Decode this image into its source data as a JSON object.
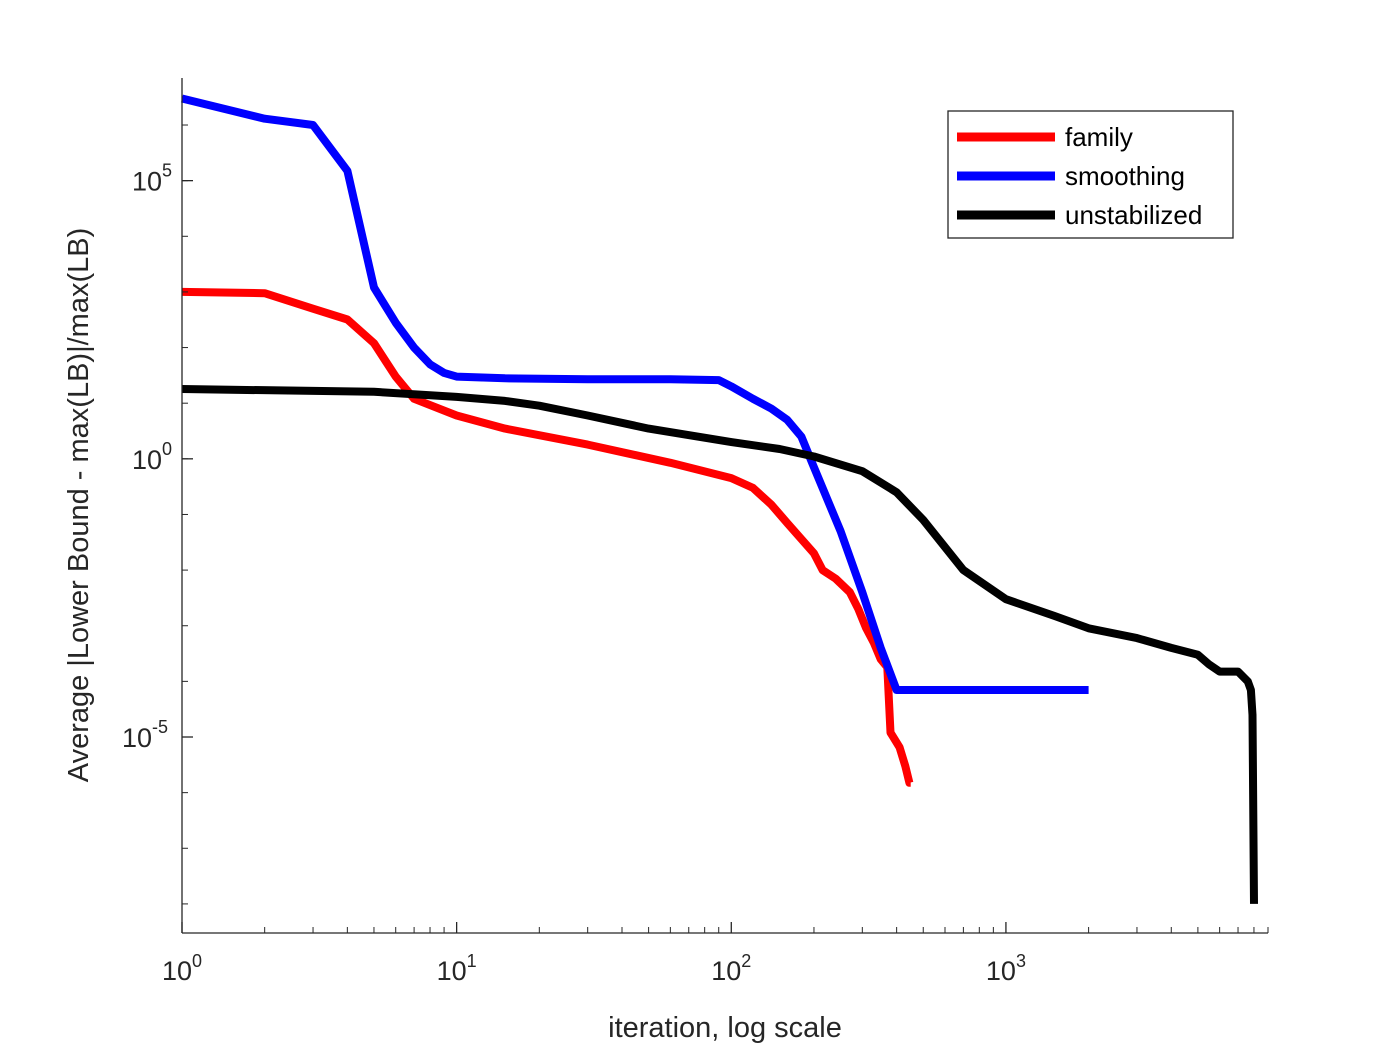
{
  "chart_data": {
    "type": "line",
    "title": "",
    "xlabel": "iteration, log scale",
    "ylabel": "Average |Lower Bound - max(LB)|/max(LB)",
    "xscale": "log",
    "yscale": "log",
    "xlim": [
      1,
      9000
    ],
    "ylim": [
      3e-09,
      7000000
    ],
    "grid": false,
    "legend_position": "top-right",
    "xticks": [
      {
        "value": 1,
        "base": "10",
        "exp": "0"
      },
      {
        "value": 10,
        "base": "10",
        "exp": "1"
      },
      {
        "value": 100,
        "base": "10",
        "exp": "2"
      },
      {
        "value": 1000,
        "base": "10",
        "exp": "3"
      }
    ],
    "yticks": [
      {
        "value": 1e-05,
        "base": "10",
        "exp": "-5"
      },
      {
        "value": 1,
        "base": "10",
        "exp": "0"
      },
      {
        "value": 100000,
        "base": "10",
        "exp": "5"
      }
    ],
    "series": [
      {
        "name": "family",
        "color": "#ff0000",
        "x": [
          1,
          2,
          3,
          4,
          5,
          6,
          7,
          10,
          15,
          30,
          60,
          100,
          120,
          140,
          160,
          200,
          215,
          240,
          270,
          290,
          310,
          330,
          350,
          370,
          380,
          410,
          430,
          445,
          450
        ],
        "y": [
          1000,
          950,
          500,
          320,
          120,
          30,
          12,
          6,
          3.5,
          1.8,
          0.85,
          0.45,
          0.3,
          0.15,
          0.07,
          0.02,
          0.01,
          0.007,
          0.004,
          0.002,
          0.0009,
          0.0005,
          0.00025,
          0.00018,
          1.2e-05,
          6.5e-06,
          3e-06,
          1.5e-06,
          1.5e-06
        ]
      },
      {
        "name": "smoothing",
        "color": "#0000ff",
        "x": [
          1,
          2,
          3,
          4,
          5,
          6,
          7,
          8,
          9,
          10,
          15,
          30,
          60,
          90,
          100,
          120,
          140,
          160,
          180,
          200,
          250,
          300,
          350,
          400,
          2000
        ],
        "y": [
          3000000,
          1300000,
          1000000,
          150000,
          1200,
          280,
          100,
          50,
          35,
          30,
          28,
          27,
          27,
          26,
          20,
          12,
          8,
          5,
          2.5,
          0.7,
          0.05,
          0.004,
          0.0004,
          7e-05,
          7e-05
        ]
      },
      {
        "name": "unstabilized",
        "color": "#000000",
        "x": [
          1,
          5,
          10,
          15,
          20,
          30,
          50,
          100,
          150,
          200,
          300,
          400,
          500,
          700,
          1000,
          1500,
          2000,
          3000,
          4000,
          5000,
          5500,
          6000,
          7000,
          7600,
          7800,
          7900,
          8000,
          8000
        ],
        "y": [
          18,
          16,
          13,
          11,
          9,
          6,
          3.5,
          2,
          1.5,
          1.1,
          0.6,
          0.25,
          0.08,
          0.01,
          0.003,
          0.0015,
          0.0009,
          0.0006,
          0.0004,
          0.0003,
          0.0002,
          0.00015,
          0.00015,
          0.0001,
          7e-05,
          2.5e-05,
          1e-08,
          1e-08
        ]
      }
    ]
  }
}
